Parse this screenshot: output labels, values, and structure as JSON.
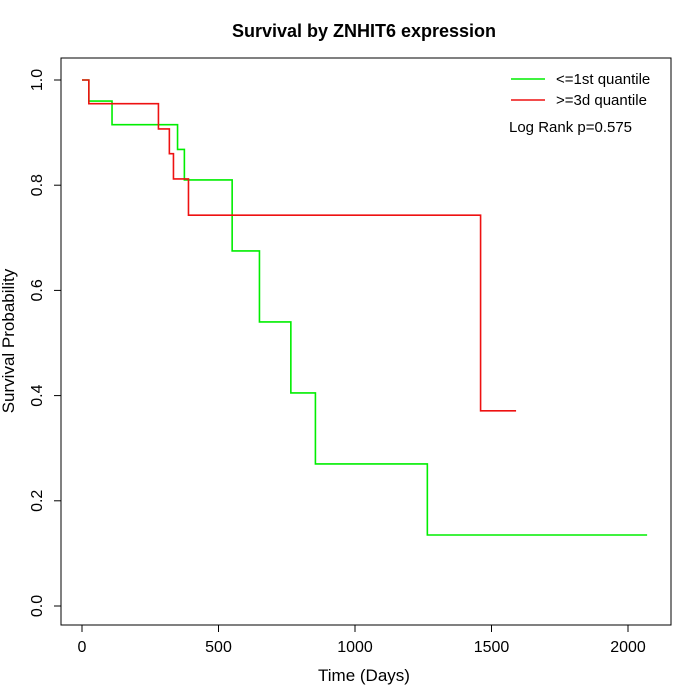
{
  "chart_data": {
    "type": "line",
    "step": true,
    "title": "Survival by ZNHIT6 expression",
    "xlabel": "Time (Days)",
    "ylabel": "Survival Probability",
    "xlim": [
      0,
      2070
    ],
    "ylim": [
      0,
      1
    ],
    "x_ticks": [
      0,
      500,
      1000,
      1500,
      2000
    ],
    "y_ticks": [
      0.0,
      0.2,
      0.4,
      0.6,
      0.8,
      1.0
    ],
    "x_tick_labels": [
      "0",
      "500",
      "1000",
      "1500",
      "2000"
    ],
    "y_tick_labels": [
      "0.0",
      "0.2",
      "0.4",
      "0.6",
      "0.8",
      "1.0"
    ],
    "grid": false,
    "legend_position": "top-right",
    "annotation": "Log Rank p=0.575",
    "series": [
      {
        "name": "<=1st quantile",
        "color": "#00ee00",
        "points": [
          [
            0,
            1.0
          ],
          [
            25,
            0.96
          ],
          [
            110,
            0.915
          ],
          [
            350,
            0.868
          ],
          [
            375,
            0.81
          ],
          [
            550,
            0.675
          ],
          [
            650,
            0.54
          ],
          [
            765,
            0.405
          ],
          [
            855,
            0.27
          ],
          [
            1265,
            0.135
          ],
          [
            2070,
            0.135
          ]
        ]
      },
      {
        "name": ">=3d quantile",
        "color": "#ee1111",
        "points": [
          [
            0,
            1.0
          ],
          [
            25,
            0.955
          ],
          [
            280,
            0.907
          ],
          [
            320,
            0.86
          ],
          [
            335,
            0.812
          ],
          [
            390,
            0.743
          ],
          [
            1460,
            0.371
          ],
          [
            1590,
            0.371
          ]
        ]
      }
    ]
  }
}
